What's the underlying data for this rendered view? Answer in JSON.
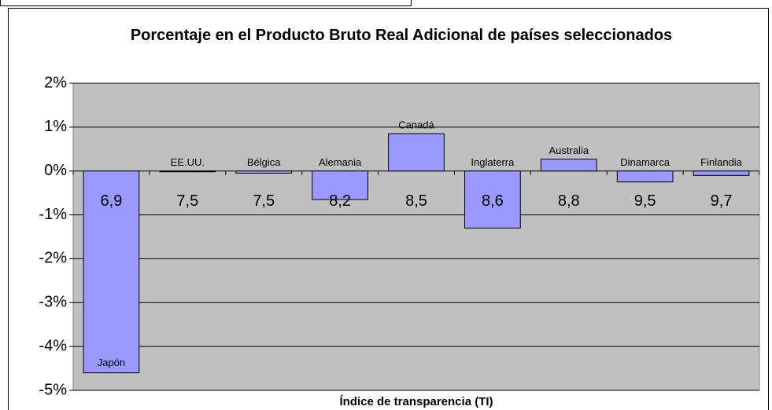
{
  "chart_data": {
    "type": "bar",
    "title": "Porcentaje en el Producto Bruto Real Adicional de países seleccionados",
    "x_label": "Índice de transparencia (TI)",
    "categories": [
      "6,9",
      "7,5",
      "7,5",
      "8,2",
      "8,5",
      "8,6",
      "8,8",
      "9,5",
      "9,7"
    ],
    "labels": [
      "Japón",
      "EE.UU.",
      "Bélgica",
      "Alemania",
      "Canadá",
      "Inglaterra",
      "Australia",
      "Dinamarca",
      "Finlandia"
    ],
    "values": [
      -4.6,
      0,
      -0.05,
      -0.65,
      0.85,
      -1.3,
      0.27,
      -0.25,
      -0.1
    ],
    "color": "#9999ff",
    "ylim": [
      -5,
      2
    ],
    "yticks": [
      {
        "value": -5,
        "label": "-5%"
      },
      {
        "value": -4,
        "label": "-4%"
      },
      {
        "value": -3,
        "label": "-3%"
      },
      {
        "value": -2,
        "label": "-2%"
      },
      {
        "value": -1,
        "label": "-1%"
      },
      {
        "value": 0,
        "label": "0%"
      },
      {
        "value": 1,
        "label": "1%"
      },
      {
        "value": 2,
        "label": "2%"
      }
    ],
    "grid": true
  }
}
